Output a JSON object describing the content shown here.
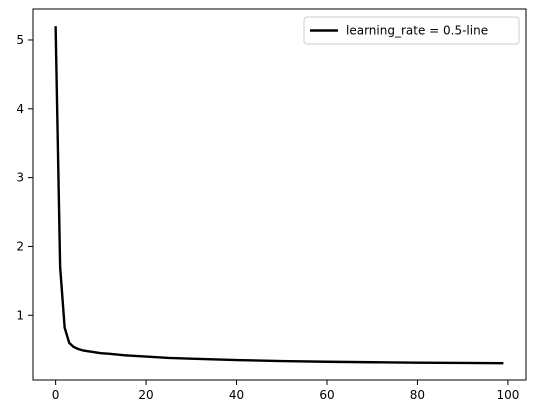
{
  "chart_data": {
    "type": "line",
    "title": "",
    "xlabel": "",
    "ylabel": "",
    "xlim": [
      -5,
      104
    ],
    "ylim": [
      0.06,
      5.45
    ],
    "x_ticks": [
      0,
      20,
      40,
      60,
      80,
      100
    ],
    "y_ticks": [
      1,
      2,
      3,
      4,
      5
    ],
    "x_tick_labels": [
      "0",
      "20",
      "40",
      "60",
      "80",
      "100"
    ],
    "y_tick_labels": [
      "1",
      "2",
      "3",
      "4",
      "5"
    ],
    "grid": false,
    "legend_position": "top-right",
    "series": [
      {
        "name": "learning_rate = 0.5-line",
        "color": "#000000",
        "x": [
          0,
          1,
          2,
          3,
          4,
          5,
          6,
          8,
          10,
          12,
          15,
          20,
          25,
          30,
          40,
          50,
          60,
          70,
          80,
          90,
          99
        ],
        "y": [
          5.2,
          1.7,
          0.82,
          0.6,
          0.54,
          0.51,
          0.49,
          0.47,
          0.45,
          0.44,
          0.42,
          0.4,
          0.38,
          0.37,
          0.35,
          0.335,
          0.325,
          0.318,
          0.312,
          0.308,
          0.305
        ]
      }
    ]
  }
}
